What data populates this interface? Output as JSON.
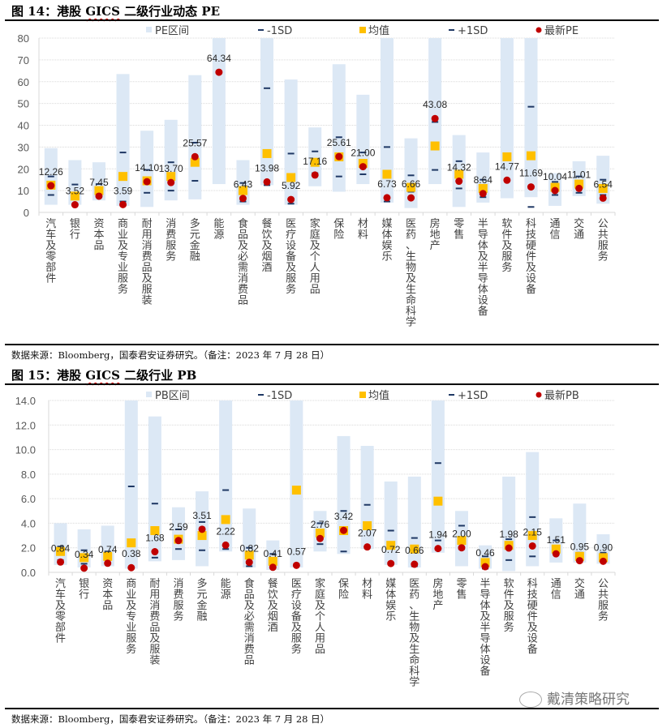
{
  "figures": [
    {
      "title_prefix": "图 14：港股 ",
      "title_gics": "GICS",
      "title_suffix": " 二级行业动态 PE",
      "source": "数据来源：Bloomberg，国泰君安证券研究。（备注：2023 年 7 月 28 日）"
    },
    {
      "title_prefix": "图 15：港股 ",
      "title_gics": "GICS",
      "title_suffix": " 二级行业 PB",
      "source": "数据来源：Bloomberg，国泰君安证券研究。（备注：2023 年 7 月 28 日）"
    }
  ],
  "watermark": "戴清策略研究",
  "colors": {
    "range": "#dce8f5",
    "sd": "#1f3864",
    "mean": "#ffc000",
    "latest": "#c00000",
    "grid": "#d9d9d9",
    "axis_text": "#595959"
  },
  "chart_data": [
    {
      "type": "bar",
      "title": "港股 GICS 二级行业动态 PE",
      "xlabel": "",
      "ylabel": "",
      "ylim": [
        0,
        80
      ],
      "yticks": [
        "0",
        "10",
        "20",
        "30",
        "40",
        "50",
        "60",
        "70",
        "80"
      ],
      "ytick_values": [
        0,
        10,
        20,
        30,
        40,
        50,
        60,
        70,
        80
      ],
      "grid": true,
      "legend_position": "top",
      "legend": [
        "PE区间",
        "-1SD",
        "均值",
        "+1SD",
        "最新PE"
      ],
      "categories": [
        "汽车及零部件",
        "银行",
        "资本品",
        "商业及专业服务",
        "耐用消费品及服装",
        "消费服务",
        "多元金融",
        "能源",
        "食品及必需消费品",
        "餐饮及烟酒",
        "医疗设备及服务",
        "家庭及个人用品",
        "保险",
        "材料",
        "媒体娱乐",
        "医药、生物及生命科学",
        "房地产",
        "零售",
        "半导体及半导体设备",
        "软件及服务",
        "科技硬件及设备",
        "通信",
        "交通",
        "公共服务"
      ],
      "series": [
        {
          "name": "PE区间低",
          "values": [
            3.5,
            3.5,
            5.5,
            3,
            2.5,
            5.5,
            6,
            13,
            3.5,
            12.5,
            3.5,
            12,
            9.5,
            13,
            4.5,
            2,
            13,
            2.5,
            4.5,
            6.5,
            7,
            3,
            7.5,
            4
          ]
        },
        {
          "name": "PE区间高",
          "values": [
            29.5,
            24,
            23,
            63.5,
            37.5,
            42.5,
            63,
            80,
            24,
            80,
            61,
            39,
            68,
            54,
            80,
            34,
            80,
            35.5,
            27.5,
            80,
            80,
            18,
            23.5,
            26
          ]
        },
        {
          "name": "-1SD",
          "values": [
            8,
            3.5,
            7,
            5,
            9,
            10,
            14.5,
            null,
            5,
            12.5,
            4,
            18,
            16.5,
            17.5,
            5,
            9.5,
            19.5,
            11,
            7,
            null,
            2.5,
            8,
            9,
            8
          ]
        },
        {
          "name": "均值",
          "values": [
            12.5,
            7.5,
            10,
            16.5,
            14.5,
            16.5,
            23,
            null,
            10,
            27,
            16,
            23,
            25.5,
            22.5,
            17.5,
            11.5,
            30.5,
            17.5,
            11,
            25.5,
            26,
            11.5,
            13,
            11
          ]
        },
        {
          "name": "+1SD",
          "values": [
            16.5,
            12.8,
            13,
            27.5,
            19.5,
            23,
            32,
            null,
            13.5,
            57,
            27,
            28,
            34.5,
            27.5,
            30,
            17,
            41.5,
            23.5,
            15,
            null,
            48.5,
            14,
            16.5,
            15
          ]
        },
        {
          "name": "最新PE",
          "values": [
            12.26,
            3.52,
            7.45,
            3.59,
            14.1,
            13.7,
            25.57,
            64.34,
            6.43,
            13.98,
            5.92,
            17.16,
            25.61,
            21.0,
            6.73,
            6.66,
            43.08,
            14.32,
            8.64,
            14.77,
            11.69,
            10.04,
            11.01,
            6.54
          ]
        }
      ],
      "data_labels": [
        "12.26",
        "3.52",
        "7.45",
        "3.59",
        "14.10",
        "13.70",
        "25.57",
        "64.34",
        "6.43",
        "13.98",
        "5.92",
        "17.16",
        "25.61",
        "21.00",
        "6.73",
        "6.66",
        "43.08",
        "14.32",
        "8.64",
        "14.77",
        "11.69",
        "10.04",
        "11.01",
        "6.54"
      ]
    },
    {
      "type": "bar",
      "title": "港股 GICS 二级行业 PB",
      "xlabel": "",
      "ylabel": "",
      "ylim": [
        0,
        14
      ],
      "yticks": [
        "0.0",
        "2.0",
        "4.0",
        "6.0",
        "8.0",
        "10.0",
        "12.0",
        "14.0"
      ],
      "ytick_values": [
        0,
        2,
        4,
        6,
        8,
        10,
        12,
        14
      ],
      "grid": true,
      "legend_position": "top",
      "legend": [
        "PB区间",
        "-1SD",
        "均值",
        "+1SD",
        "最新PB"
      ],
      "categories": [
        "汽车及零部件",
        "银行",
        "资本品",
        "商业及专业服务",
        "耐用消费品及服装",
        "消费服务",
        "多元金融",
        "能源",
        "食品及必需消费品",
        "餐饮及烟酒",
        "医疗设备及服务",
        "家庭及个人用品",
        "保险",
        "材料",
        "媒体娱乐",
        "医药、生物及生命科学",
        "房地产",
        "零售",
        "半导体及半导体设备",
        "软件及服务",
        "科技硬件及设备",
        "通信",
        "交通",
        "公共服务"
      ],
      "series": [
        {
          "name": "PB区间低",
          "values": [
            0.6,
            0.4,
            0.5,
            0.3,
            0.9,
            1.0,
            0.5,
            1.7,
            0.4,
            0.2,
            0.4,
            1.7,
            1.5,
            1.9,
            0.6,
            0.4,
            1.6,
            0.5,
            0.3,
            0.1,
            0.5,
            0.8,
            0.8,
            0.7
          ]
        },
        {
          "name": "PB区间高",
          "values": [
            4.0,
            3.5,
            3.8,
            14.0,
            12.7,
            5.3,
            6.6,
            14.0,
            5.2,
            2.6,
            14.0,
            5.0,
            11.1,
            10.3,
            7.4,
            7.8,
            14.0,
            5.0,
            2.2,
            7.8,
            9.8,
            4.4,
            5.6,
            3.1
          ]
        },
        {
          "name": "-1SD",
          "values": [
            1.0,
            0.7,
            null,
            null,
            1.2,
            1.9,
            1.8,
            1.9,
            0.5,
            0.4,
            null,
            2.3,
            1.7,
            null,
            null,
            0.5,
            2.6,
            1.9,
            0.3,
            1.0,
            1.3,
            null,
            null,
            null
          ]
        },
        {
          "name": "均值",
          "values": [
            1.7,
            1.2,
            1.3,
            2.4,
            3.4,
            2.7,
            3.0,
            4.3,
            1.4,
            0.9,
            6.7,
            3.2,
            3.4,
            3.8,
            2.2,
            1.9,
            5.8,
            2.6,
            0.8,
            2.2,
            3.0,
            1.9,
            1.3,
            1.2
          ]
        },
        {
          "name": "+1SD",
          "values": [
            2.1,
            1.8,
            1.7,
            7.0,
            5.6,
            3.5,
            4.1,
            6.7,
            2.0,
            1.5,
            null,
            4.0,
            5.0,
            5.5,
            3.4,
            2.8,
            8.9,
            3.8,
            1.3,
            2.7,
            4.5,
            2.6,
            1.6,
            1.6
          ]
        },
        {
          "name": "最新PB",
          "values": [
            0.84,
            0.34,
            0.74,
            0.38,
            1.68,
            2.59,
            3.51,
            2.22,
            0.82,
            0.41,
            0.57,
            2.76,
            3.42,
            2.07,
            0.72,
            0.66,
            1.94,
            2.0,
            0.46,
            1.98,
            2.15,
            1.51,
            0.95,
            0.9
          ]
        }
      ],
      "data_labels": [
        "0.84",
        "0.34",
        "0.74",
        "0.38",
        "1.68",
        "2.59",
        "3.51",
        "2.22",
        "0.82",
        "0.41",
        "0.57",
        "2.76",
        "3.42",
        "2.07",
        "0.72",
        "0.66",
        "1.94",
        "2.00",
        "0.46",
        "1.98",
        "2.15",
        "1.51",
        "0.95",
        "0.90"
      ]
    }
  ]
}
